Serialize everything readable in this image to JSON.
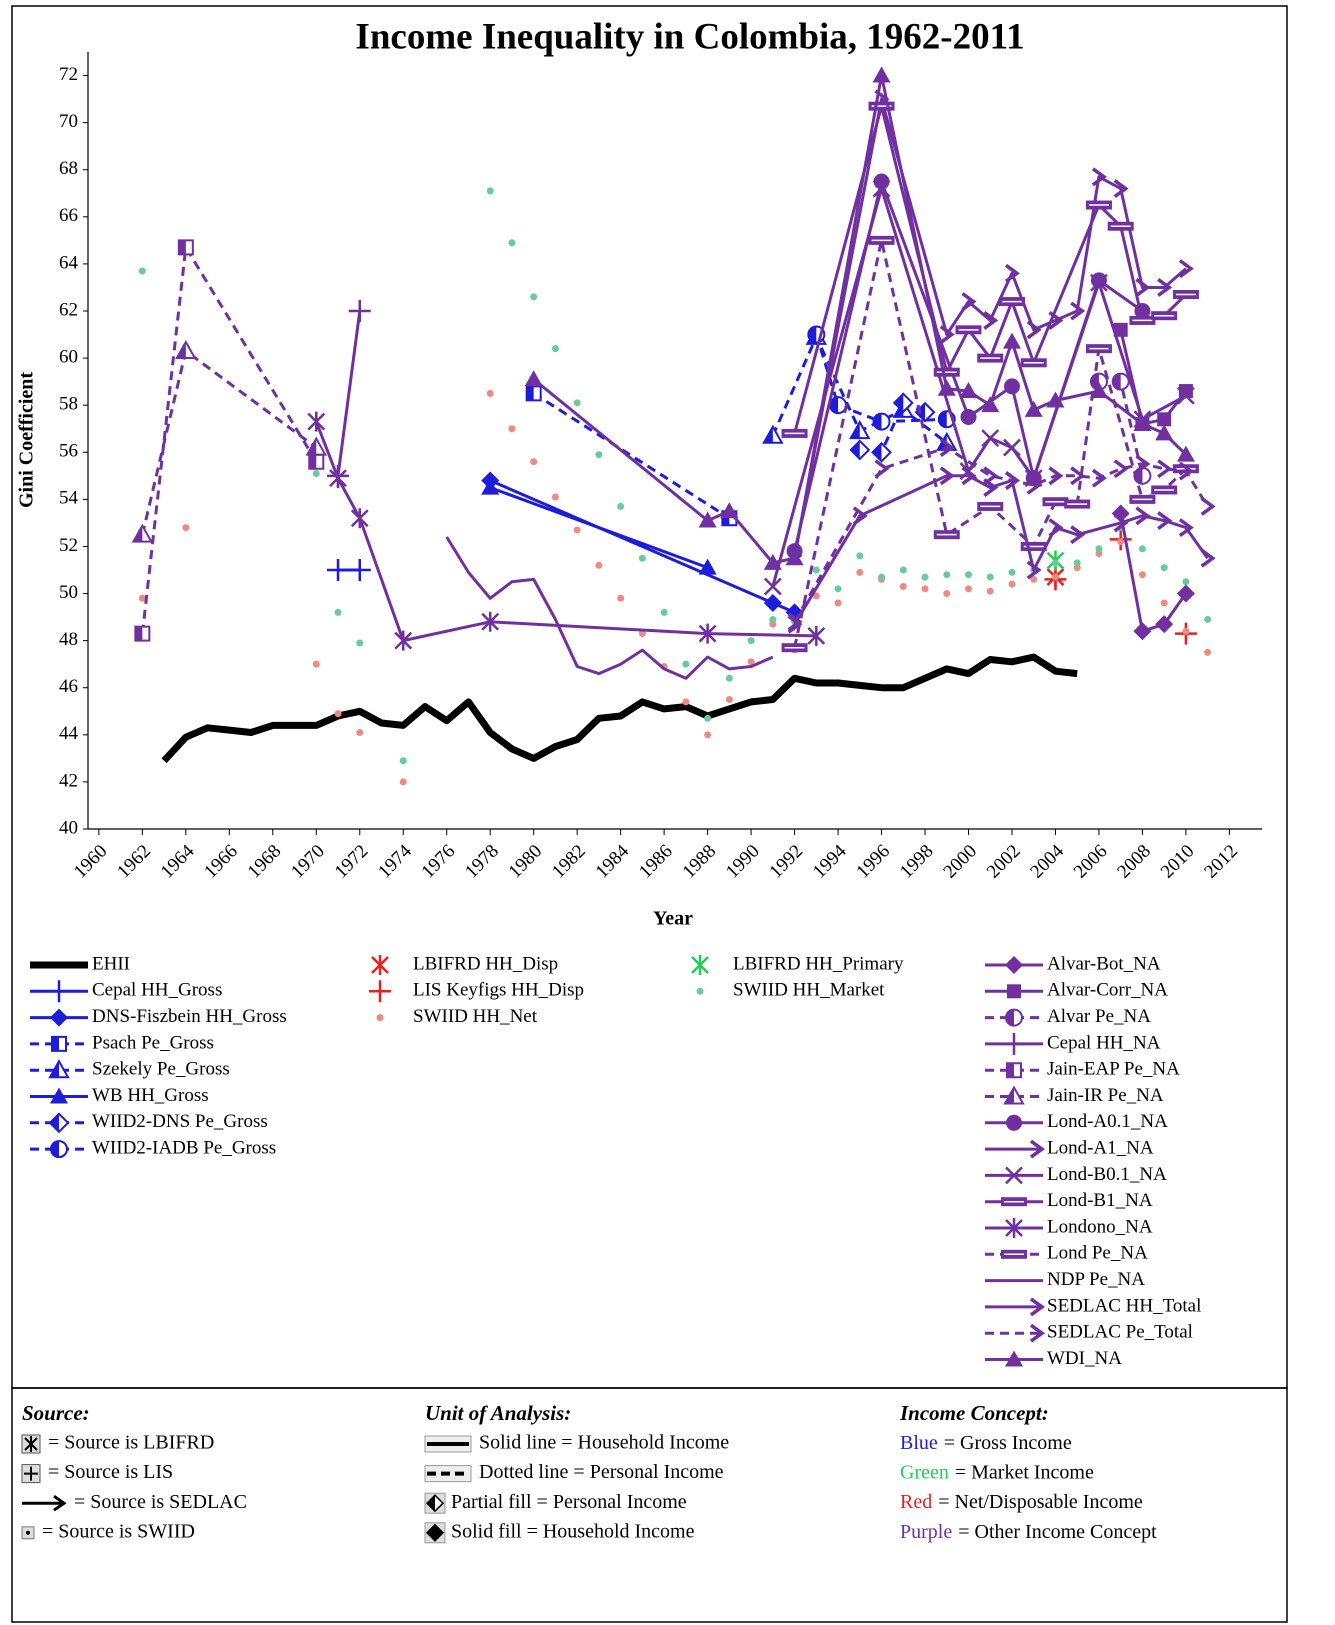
{
  "chart_data": {
    "type": "line",
    "title": "Income Inequality in Colombia, 1962-2011",
    "xlabel": "Year",
    "ylabel": "Gini Coefficient",
    "xlim": [
      1959.5,
      2013.5
    ],
    "ylim": [
      40,
      73
    ],
    "xticks": [
      1960,
      1962,
      1964,
      1966,
      1968,
      1970,
      1972,
      1974,
      1976,
      1978,
      1980,
      1982,
      1984,
      1986,
      1988,
      1990,
      1992,
      1994,
      1996,
      1998,
      2000,
      2002,
      2004,
      2006,
      2008,
      2010,
      2012
    ],
    "yticks": [
      40,
      42,
      44,
      46,
      48,
      50,
      52,
      54,
      56,
      58,
      60,
      62,
      64,
      66,
      68,
      70,
      72
    ],
    "series": [
      {
        "name": "EHII",
        "color": "#000000",
        "marker": "none",
        "width": 7,
        "x": [
          1963,
          1964,
          1965,
          1966,
          1967,
          1968,
          1969,
          1970,
          1971,
          1972,
          1973,
          1974,
          1975,
          1976,
          1977,
          1978,
          1979,
          1980,
          1981,
          1982,
          1983,
          1984,
          1985,
          1986,
          1987,
          1988,
          1989,
          1990,
          1991,
          1992,
          1993,
          1994,
          1995,
          1996,
          1997,
          1998,
          1999,
          2000,
          2001,
          2002,
          2003,
          2004,
          2005
        ],
        "values": [
          42.9,
          43.9,
          44.3,
          44.2,
          44.1,
          44.4,
          44.4,
          44.4,
          44.8,
          45.0,
          44.5,
          44.4,
          45.2,
          44.6,
          45.4,
          44.1,
          43.4,
          43.0,
          43.5,
          43.8,
          44.7,
          44.8,
          45.4,
          45.1,
          45.2,
          44.8,
          45.1,
          45.4,
          45.5,
          46.4,
          46.2,
          46.2,
          46.1,
          46.0,
          46.0,
          46.4,
          46.8,
          46.6,
          47.2,
          47.1,
          47.3,
          46.7,
          46.6
        ]
      },
      {
        "name": "Cepal HH_Gross",
        "color": "#1c1cd9",
        "marker": "plus",
        "x": [
          1971,
          1972
        ],
        "values": [
          51.0,
          51.0
        ]
      },
      {
        "name": "DNS-Fiszbein HH_Gross",
        "color": "#1c1cd9",
        "marker": "diamond",
        "x": [
          1978,
          1991,
          1992
        ],
        "values": [
          54.8,
          49.6,
          49.2
        ]
      },
      {
        "name": "Psach Pe_Gross",
        "color": "#1c1cd9",
        "marker": "square-half",
        "dash": true,
        "x": [
          1980,
          1989
        ],
        "values": [
          58.5,
          53.2
        ]
      },
      {
        "name": "Szekely Pe_Gross",
        "color": "#1c1cd9",
        "marker": "triangle-half",
        "dash": true,
        "x": [
          1991,
          1993,
          1995,
          1997,
          1999
        ],
        "values": [
          56.7,
          60.9,
          56.9,
          57.8,
          56.4
        ]
      },
      {
        "name": "WB HH_Gross",
        "color": "#1c1cd9",
        "marker": "triangle",
        "x": [
          1978,
          1988
        ],
        "values": [
          54.5,
          51.1
        ]
      },
      {
        "name": "WIID2-DNS Pe_Gross",
        "color": "#1c1cd9",
        "marker": "diamond-half",
        "dash": true,
        "x": [
          1995,
          1996,
          1997,
          1998
        ],
        "values": [
          56.1,
          56.0,
          58.1,
          57.7
        ]
      },
      {
        "name": "WIID2-IADB Pe_Gross",
        "color": "#1c1cd9",
        "marker": "circle-half",
        "dash": true,
        "x": [
          1993,
          1994,
          1996,
          1999
        ],
        "values": [
          61.0,
          58.0,
          57.3,
          57.4
        ]
      },
      {
        "name": "LBIFRD HH_Disp",
        "color": "#e8201c",
        "marker": "star",
        "line": false,
        "x": [
          2004
        ],
        "values": [
          50.7
        ]
      },
      {
        "name": "LIS Keyfigs HH_Disp",
        "color": "#e8201c",
        "marker": "plus",
        "line": false,
        "x": [
          2004,
          2007,
          2010
        ],
        "values": [
          50.6,
          52.3,
          48.3
        ]
      },
      {
        "name": "SWIID HH_Net",
        "color": "#ee8a80",
        "marker": "dot",
        "line": false,
        "x": [
          1962,
          1964,
          1970,
          1971,
          1972,
          1974,
          1978,
          1979,
          1980,
          1981,
          1982,
          1983,
          1984,
          1985,
          1986,
          1987,
          1988,
          1989,
          1990,
          1991,
          1992,
          1993,
          1994,
          1995,
          1996,
          1997,
          1998,
          1999,
          2000,
          2001,
          2002,
          2003,
          2004,
          2005,
          2006,
          2007,
          2008,
          2009,
          2010,
          2011
        ],
        "values": [
          49.8,
          52.8,
          47.0,
          44.9,
          44.1,
          42.0,
          58.5,
          57.0,
          55.6,
          54.1,
          52.7,
          51.2,
          49.8,
          48.3,
          46.9,
          45.4,
          44.0,
          45.5,
          47.1,
          48.7,
          47.6,
          49.9,
          49.6,
          50.9,
          50.6,
          50.3,
          50.2,
          50.0,
          50.2,
          50.1,
          50.4,
          50.6,
          50.7,
          51.1,
          51.7,
          52.2,
          50.8,
          49.6,
          48.4,
          47.5
        ]
      },
      {
        "name": "LBIFRD HH_Primary",
        "color": "#22cc55",
        "marker": "star",
        "line": false,
        "x": [
          2004
        ],
        "values": [
          51.4
        ]
      },
      {
        "name": "SWIID HH_Market",
        "color": "#66cc99",
        "marker": "dot",
        "line": false,
        "x": [
          1962,
          1964,
          1970,
          1971,
          1972,
          1974,
          1978,
          1979,
          1980,
          1981,
          1982,
          1983,
          1984,
          1985,
          1986,
          1987,
          1988,
          1989,
          1990,
          1991,
          1992,
          1993,
          1994,
          1995,
          1996,
          1997,
          1998,
          1999,
          2000,
          2001,
          2002,
          2003,
          2004,
          2005,
          2006,
          2007,
          2008,
          2009,
          2010,
          2011
        ],
        "values": [
          63.7,
          60.5,
          55.1,
          49.2,
          47.9,
          42.9,
          67.1,
          64.9,
          62.6,
          60.4,
          58.1,
          55.9,
          53.7,
          51.5,
          49.2,
          47.0,
          44.7,
          46.4,
          48.0,
          48.9,
          48.8,
          51.0,
          50.2,
          51.6,
          50.7,
          51.0,
          50.7,
          50.8,
          50.8,
          50.7,
          50.9,
          51.0,
          51.3,
          51.3,
          51.9,
          52.8,
          51.9,
          51.1,
          50.5,
          48.9
        ]
      },
      {
        "name": "Alvar-Bot_NA",
        "color": "#7030a0",
        "marker": "diamond",
        "x": [
          2007,
          2008,
          2009,
          2010
        ],
        "values": [
          53.4,
          48.4,
          48.7,
          50.0
        ]
      },
      {
        "name": "Alvar-Corr_NA",
        "color": "#7030a0",
        "marker": "square",
        "x": [
          2007,
          2008,
          2009,
          2010
        ],
        "values": [
          61.2,
          57.2,
          57.4,
          58.6
        ]
      },
      {
        "name": "Alvar Pe_NA",
        "color": "#7030a0",
        "marker": "circle-half",
        "dash": true,
        "x": [
          2006,
          2007,
          2008
        ],
        "values": [
          59.0,
          59.0,
          55.0
        ]
      },
      {
        "name": "Cepal HH_NA",
        "color": "#7030a0",
        "marker": "plus",
        "x": [
          1971,
          1972
        ],
        "values": [
          55.0,
          62.0
        ]
      },
      {
        "name": "Jain-EAP Pe_NA",
        "color": "#7030a0",
        "marker": "square-half",
        "dash": true,
        "x": [
          1962,
          1964,
          1970
        ],
        "values": [
          48.3,
          64.7,
          55.6
        ]
      },
      {
        "name": "Jain-IR Pe_NA",
        "color": "#7030a0",
        "marker": "triangle-half",
        "dash": true,
        "x": [
          1962,
          1964,
          1970
        ],
        "values": [
          52.5,
          60.3,
          56.2
        ]
      },
      {
        "name": "Lond-A0.1_NA",
        "color": "#7030a0",
        "marker": "circle",
        "x": [
          1992,
          1996,
          2000,
          2002,
          2003,
          2006,
          2008
        ],
        "values": [
          51.8,
          67.5,
          57.5,
          58.8,
          54.9,
          63.3,
          62.0
        ]
      },
      {
        "name": "Lond-A1_NA",
        "color": "#7030a0",
        "marker": "arrow",
        "x": [
          1992,
          1996,
          1999,
          2000,
          2001,
          2002,
          2003,
          2004,
          2005,
          2006,
          2007,
          2008,
          2009,
          2010
        ],
        "values": [
          51.6,
          71.0,
          61.0,
          62.4,
          61.6,
          63.6,
          61.2,
          61.6,
          62.0,
          67.7,
          67.2,
          63.0,
          63.0,
          63.8
        ]
      },
      {
        "name": "Lond-B0.1_NA",
        "color": "#7030a0",
        "marker": "x",
        "x": [
          1991,
          1996,
          2000,
          2001,
          2002,
          2003,
          2006,
          2008,
          2010
        ],
        "values": [
          50.3,
          67.2,
          55.2,
          56.6,
          56.2,
          54.9,
          63.2,
          57.4,
          58.4
        ]
      },
      {
        "name": "Lond-B1_NA",
        "color": "#7030a0",
        "marker": "rect",
        "x": [
          1992,
          1996,
          1999,
          2000,
          2001,
          2002,
          2003,
          2006,
          2007,
          2008,
          2009,
          2010
        ],
        "values": [
          56.8,
          70.7,
          59.4,
          61.2,
          60.0,
          62.4,
          59.8,
          66.5,
          65.6,
          61.6,
          61.8,
          62.7
        ]
      },
      {
        "name": "Londono_NA",
        "color": "#7030a0",
        "marker": "star",
        "x": [
          1970,
          1971,
          1972,
          1974,
          1978,
          1988,
          1993
        ],
        "values": [
          57.3,
          54.9,
          53.2,
          48.0,
          48.8,
          48.3,
          48.2
        ]
      },
      {
        "name": "Lond Pe_NA",
        "color": "#7030a0",
        "marker": "rect",
        "dash": true,
        "x": [
          1992,
          1996,
          1999,
          2001,
          2003,
          2004,
          2005,
          2006,
          2008,
          2009,
          2010
        ],
        "values": [
          47.7,
          65.0,
          52.5,
          53.7,
          52.0,
          53.9,
          53.8,
          60.4,
          54.0,
          54.4,
          55.3
        ]
      },
      {
        "name": "NDP Pe_NA",
        "color": "#7030a0",
        "marker": "none",
        "x": [
          1976,
          1977,
          1978,
          1979,
          1980,
          1981,
          1982,
          1983,
          1984,
          1985,
          1986,
          1987,
          1988,
          1989,
          1990,
          1991
        ],
        "values": [
          52.4,
          50.9,
          49.8,
          50.5,
          50.6,
          48.9,
          46.9,
          46.6,
          47.0,
          47.6,
          46.8,
          46.4,
          47.3,
          46.8,
          46.9,
          47.3
        ]
      },
      {
        "name": "SEDLAC HH_Total",
        "color": "#7030a0",
        "marker": "arrow",
        "x": [
          1992,
          1995,
          1999,
          2000,
          2001,
          2002,
          2003,
          2004,
          2005,
          2007,
          2008,
          2009,
          2010,
          2011
        ],
        "values": [
          48.7,
          53.3,
          55.0,
          55.0,
          54.5,
          54.8,
          51.0,
          52.8,
          52.5,
          53.0,
          53.3,
          53.1,
          52.8,
          51.5
        ]
      },
      {
        "name": "SEDLAC Pe_Total",
        "color": "#7030a0",
        "marker": "arrow",
        "dash": true,
        "x": [
          1992,
          1996,
          1999,
          2001,
          2002,
          2003,
          2004,
          2005,
          2006,
          2007,
          2008,
          2009,
          2010,
          2011
        ],
        "values": [
          48.8,
          55.3,
          56.2,
          55.0,
          54.8,
          54.6,
          55.0,
          55.0,
          54.9,
          55.3,
          55.5,
          55.3,
          55.2,
          53.7
        ]
      },
      {
        "name": "WDI_NA",
        "color": "#7030a0",
        "marker": "triangle",
        "x": [
          1980,
          1988,
          1989,
          1991,
          1992,
          1996,
          1999,
          2000,
          2001,
          2002,
          2003,
          2004,
          2006,
          2008,
          2009,
          2010
        ],
        "values": [
          59.1,
          53.1,
          53.5,
          51.3,
          51.5,
          72.0,
          58.7,
          58.6,
          58.0,
          60.7,
          57.8,
          58.2,
          58.6,
          57.2,
          56.8,
          55.9
        ]
      }
    ],
    "key": [
      {
        "title": "Source:",
        "items": [
          "= Source is LBIFRD",
          "= Source is LIS",
          "= Source is SEDLAC",
          "= Source is SWIID"
        ]
      },
      {
        "title": "Unit of Analysis:",
        "items": [
          "Solid line = Household Income",
          "Dotted line = Personal Income",
          "Partial fill = Personal Income",
          "Solid fill = Household Income"
        ]
      },
      {
        "title": "Income Concept:",
        "items": [
          {
            "word": "Blue",
            "text": "= Gross Income",
            "color": "#1c1cd9"
          },
          {
            "word": "Green",
            "text": "= Market Income",
            "color": "#22cc55"
          },
          {
            "word": "Red",
            "text": "= Net/Disposable Income",
            "color": "#e8201c"
          },
          {
            "word": "Purple",
            "text": "= Other Income Concept",
            "color": "#7030a0"
          }
        ]
      }
    ]
  }
}
